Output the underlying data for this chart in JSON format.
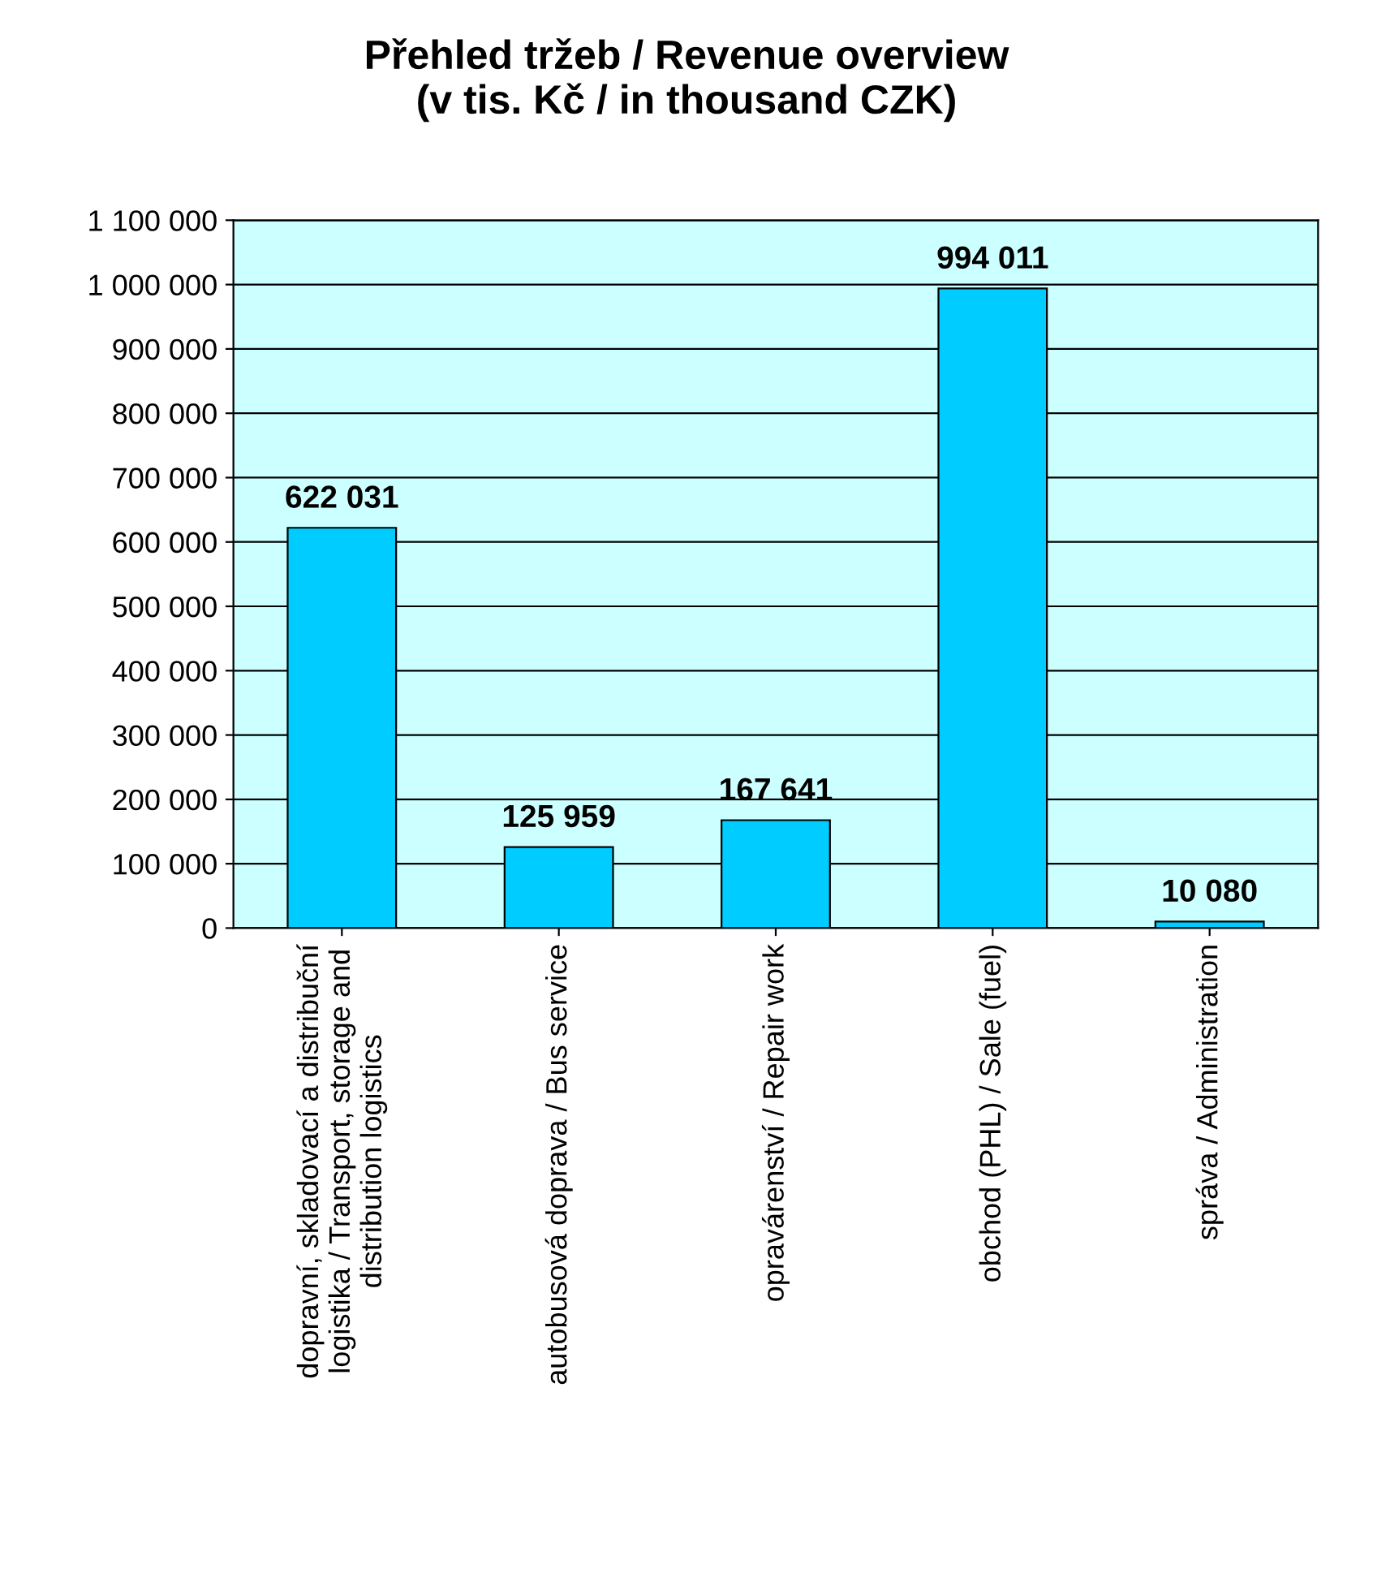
{
  "chart_data": {
    "type": "bar",
    "title": "Přehled tržeb / Revenue overview\n(v tis. Kč / in thousand CZK)",
    "categories": [
      "dopravní, skladovací a distribuční\nlogistika / Transport, storage and\ndistribution logistics",
      "autobusová doprava / Bus service",
      "opravárenství / Repair work",
      "obchod (PHL) / Sale (fuel)",
      "správa / Administration"
    ],
    "values": [
      622031,
      125959,
      167641,
      994011,
      10080
    ],
    "value_labels": [
      "622 031",
      "125 959",
      "167 641",
      "994 011",
      "10 080"
    ],
    "color": "#00ccff",
    "ylim": [
      0,
      1100000
    ],
    "yticks": [
      0,
      {
        "value": 100000,
        "label": "100 000"
      },
      {
        "value": 200000,
        "label": "200 000"
      },
      {
        "value": 300000,
        "label": "300 000"
      },
      {
        "value": 400000,
        "label": "400 000"
      },
      {
        "value": 500000,
        "label": "500 000"
      },
      {
        "value": 600000,
        "label": "600 000"
      },
      {
        "value": 700000,
        "label": "700 000"
      },
      {
        "value": 800000,
        "label": "800 000"
      },
      {
        "value": 900000,
        "label": "900 000"
      },
      {
        "value": 1000000,
        "label": "1 000 000"
      },
      {
        "value": 1100000,
        "label": "1 100 000"
      }
    ],
    "grid": "y",
    "legend": false
  }
}
